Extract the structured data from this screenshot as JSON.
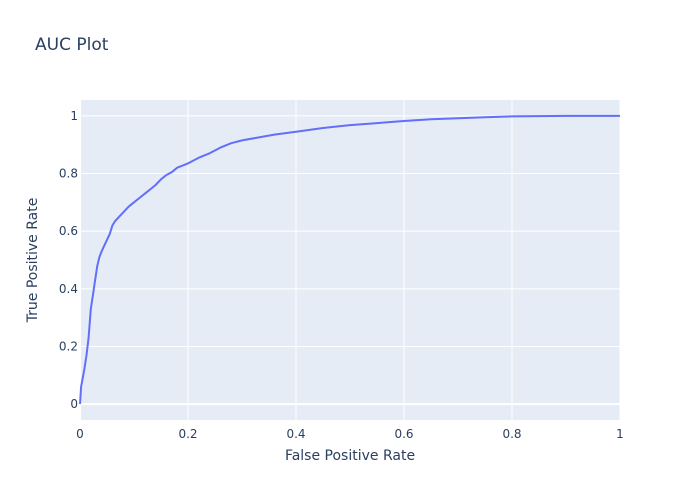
{
  "chart_data": {
    "type": "line",
    "title": "AUC Plot",
    "xlabel": "False Positive Rate",
    "ylabel": "True Positive Rate",
    "xlim": [
      0,
      1
    ],
    "ylim": [
      -0.055,
      1.055
    ],
    "x_ticks": [
      0,
      0.2,
      0.4,
      0.6,
      0.8,
      1
    ],
    "x_tick_labels": [
      "0",
      "0.2",
      "0.4",
      "0.6",
      "0.8",
      "1"
    ],
    "y_ticks": [
      0,
      0.2,
      0.4,
      0.6,
      0.8,
      1
    ],
    "y_tick_labels": [
      "0",
      "0.2",
      "0.4",
      "0.6",
      "0.8",
      "1"
    ],
    "grid": true,
    "background_color": "#e5ecf6",
    "grid_color": "#ffffff",
    "series": [
      {
        "color": "#636efa",
        "x": [
          0,
          0.002,
          0.005,
          0.008,
          0.012,
          0.016,
          0.02,
          0.024,
          0.028,
          0.032,
          0.036,
          0.04,
          0.045,
          0.05,
          0.055,
          0.06,
          0.065,
          0.07,
          0.08,
          0.09,
          0.1,
          0.11,
          0.12,
          0.13,
          0.14,
          0.15,
          0.16,
          0.17,
          0.18,
          0.2,
          0.22,
          0.24,
          0.26,
          0.28,
          0.3,
          0.33,
          0.36,
          0.4,
          0.45,
          0.5,
          0.55,
          0.6,
          0.65,
          0.7,
          0.75,
          0.8,
          0.85,
          0.9,
          0.95,
          1.0
        ],
        "y": [
          0,
          0.06,
          0.09,
          0.12,
          0.17,
          0.23,
          0.33,
          0.38,
          0.43,
          0.48,
          0.51,
          0.53,
          0.55,
          0.57,
          0.59,
          0.62,
          0.635,
          0.645,
          0.665,
          0.685,
          0.7,
          0.715,
          0.73,
          0.745,
          0.76,
          0.78,
          0.795,
          0.805,
          0.82,
          0.835,
          0.855,
          0.87,
          0.89,
          0.905,
          0.915,
          0.925,
          0.935,
          0.945,
          0.958,
          0.968,
          0.975,
          0.982,
          0.988,
          0.992,
          0.995,
          0.998,
          0.999,
          1.0,
          1.0,
          1.0
        ]
      }
    ]
  }
}
